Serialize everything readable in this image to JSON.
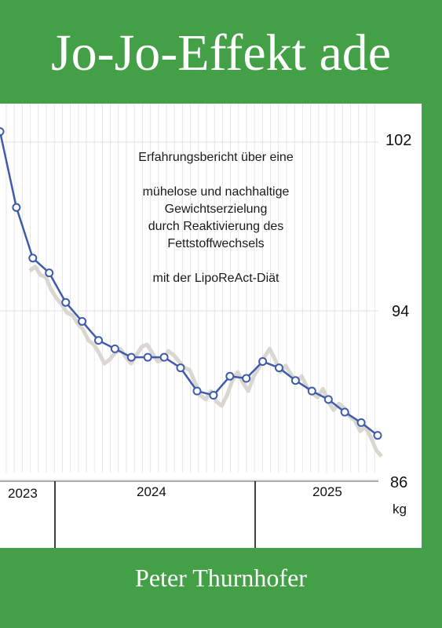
{
  "cover": {
    "title": "Jo-Jo-Effekt ade",
    "author": "Peter Thurnhofer",
    "subtitle_lines": [
      "Erfahrungsbericht über eine",
      "",
      "mühelose und nachhaltige",
      "Gewichtserzielung",
      "durch Reaktivierung des",
      "Fettstoffwechsels",
      "",
      "mit der LipoReAct-Diät"
    ],
    "colors": {
      "background": "#43a047",
      "line": "#3f5ba9",
      "noise": "#d6d2cc",
      "text": "#ffffff"
    }
  },
  "chart_data": {
    "type": "line",
    "x_labels": [
      "2023",
      "2024",
      "2025"
    ],
    "y_ticks": [
      86,
      94,
      102
    ],
    "ylim": [
      86,
      104
    ],
    "unit": "kg",
    "grid": "vertical",
    "series": [
      {
        "values": [
          102.5,
          98.9,
          96.5,
          95.8,
          94.4,
          93.5,
          92.6,
          92.2,
          91.8,
          91.8,
          91.8,
          91.3,
          90.2,
          90.0,
          90.9,
          90.8,
          91.6,
          91.3,
          90.7,
          90.2,
          89.8,
          89.2,
          88.7,
          88.1
        ]
      },
      {
        "style": "daily-noise",
        "values": [
          95.9,
          96.1,
          95.7,
          95.6,
          95.0,
          94.6,
          94.3,
          93.9,
          93.8,
          93.4,
          93.1,
          92.6,
          92.4,
          92.0,
          91.5,
          91.7,
          92.0,
          92.2,
          91.8,
          91.5,
          91.9,
          92.3,
          92.4,
          92.0,
          91.6,
          91.7,
          92.1,
          91.9,
          91.6,
          91.3,
          91.2,
          90.6,
          90.0,
          89.8,
          90.2,
          89.7,
          89.5,
          90.0,
          90.7,
          91.1,
          90.6,
          90.2,
          90.9,
          91.3,
          91.8,
          92.2,
          91.7,
          91.1,
          91.4,
          91.0,
          90.6,
          90.9,
          90.4,
          90.1,
          89.9,
          90.3,
          89.7,
          89.3,
          89.6,
          89.4,
          89.0,
          88.8,
          88.3,
          88.5,
          88.0,
          87.4,
          87.1
        ]
      }
    ]
  }
}
